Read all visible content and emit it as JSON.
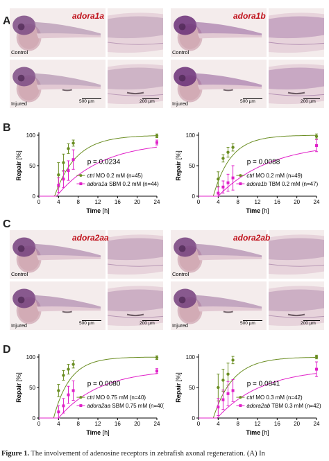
{
  "panel_labels": [
    "A",
    "B",
    "C",
    "D"
  ],
  "photo_panels": [
    {
      "gene": "adora1a",
      "control": "Control",
      "injured": "Injured",
      "scale_whole": "500 µm",
      "scale_zoom": "200 µm",
      "stain": "#a07aa0",
      "stain_strong": "#7c4b85"
    },
    {
      "gene": "adora1b",
      "control": "Control",
      "injured": "Injured",
      "scale_whole": "500 µm",
      "scale_zoom": "200 µm",
      "stain": "#8f5a98",
      "stain_strong": "#6a2f78"
    },
    {
      "gene": "adora2aa",
      "control": "Control",
      "injured": "Injured",
      "scale_whole": "500 µm",
      "scale_zoom": "200 µm",
      "stain": "#9a6e9c",
      "stain_strong": "#74407e"
    },
    {
      "gene": "adora2ab",
      "control": "Control",
      "injured": "Injured",
      "scale_whole": "500 µm",
      "scale_zoom": "200 µm",
      "stain": "#9a6e9c",
      "stain_strong": "#74407e"
    }
  ],
  "chart_data": [
    {
      "type": "line",
      "xlabel": "Time",
      "xunit": "[h]",
      "ylabel": "Repair",
      "yunit": "[%]",
      "xlim": [
        0,
        24
      ],
      "ylim": [
        0,
        100
      ],
      "xticks": [
        0,
        4,
        8,
        12,
        16,
        20,
        24
      ],
      "yticks": [
        0,
        50,
        100
      ],
      "pvalue": "p = 0.0234",
      "series": [
        {
          "name_italic": "ctrl",
          "name_rest": " MO 0.2 mM (n=45)",
          "color": "#6b8e23",
          "x": [
            4,
            5,
            6,
            7,
            24
          ],
          "y": [
            35,
            55,
            78,
            87,
            99
          ],
          "err": [
            20,
            14,
            8,
            5,
            3
          ],
          "fit": {
            "x0": 3.2,
            "k": 0.23,
            "ymax": 100
          }
        },
        {
          "name_italic": "adora1a",
          "name_rest": " SBM 0.2 mM (n=44)",
          "color": "#e020c8",
          "x": [
            4,
            5,
            6,
            7,
            24
          ],
          "y": [
            18,
            28,
            42,
            60,
            88
          ],
          "err": [
            12,
            14,
            16,
            16,
            4
          ],
          "fit": {
            "x0": 3.6,
            "k": 0.11,
            "ymax": 90
          }
        }
      ]
    },
    {
      "type": "line",
      "xlabel": "Time",
      "xunit": "[h]",
      "ylabel": "Repair",
      "yunit": "[%]",
      "xlim": [
        0,
        24
      ],
      "ylim": [
        0,
        100
      ],
      "xticks": [
        0,
        4,
        8,
        12,
        16,
        20,
        24
      ],
      "yticks": [
        0,
        50,
        100
      ],
      "pvalue": "p = 0.0088",
      "series": [
        {
          "name_italic": "ctrl",
          "name_rest": " MO 0.2 mM (n=49)",
          "color": "#6b8e23",
          "x": [
            4,
            5,
            6,
            7,
            24
          ],
          "y": [
            28,
            62,
            72,
            80,
            98
          ],
          "err": [
            12,
            6,
            8,
            6,
            4
          ],
          "fit": {
            "x0": 3.0,
            "k": 0.28,
            "ymax": 100
          }
        },
        {
          "name_italic": "adora1b",
          "name_rest": " TBM 0.2 mM (n=47)",
          "color": "#e020c8",
          "x": [
            4,
            5,
            6,
            7,
            24
          ],
          "y": [
            5,
            15,
            22,
            30,
            83
          ],
          "err": [
            10,
            10,
            14,
            20,
            10
          ],
          "fit": {
            "x0": 4.0,
            "k": 0.095,
            "ymax": 88
          }
        }
      ]
    },
    {
      "type": "line",
      "xlabel": "Time",
      "xunit": "[h]",
      "ylabel": "Repair",
      "yunit": "[%]",
      "xlim": [
        0,
        24
      ],
      "ylim": [
        0,
        100
      ],
      "xticks": [
        0,
        4,
        8,
        12,
        16,
        20,
        24
      ],
      "yticks": [
        0,
        50,
        100
      ],
      "pvalue": "p = 0.0080",
      "series": [
        {
          "name_italic": "ctrl",
          "name_rest": " MO 0.75 mM (n=40)",
          "color": "#6b8e23",
          "x": [
            4,
            5,
            6,
            7,
            24
          ],
          "y": [
            45,
            70,
            80,
            88,
            99
          ],
          "err": [
            10,
            8,
            8,
            6,
            3
          ],
          "fit": {
            "x0": 3.0,
            "k": 0.3,
            "ymax": 100
          }
        },
        {
          "name_italic": "adora2aa",
          "name_rest": " SBM 0.75 mM (n=40)",
          "color": "#e020c8",
          "x": [
            4,
            5,
            6,
            7,
            24
          ],
          "y": [
            10,
            20,
            38,
            45,
            77
          ],
          "err": [
            10,
            12,
            14,
            16,
            4
          ],
          "fit": {
            "x0": 4.0,
            "k": 0.12,
            "ymax": 80
          }
        }
      ]
    },
    {
      "type": "line",
      "xlabel": "Time",
      "xunit": "[h]",
      "ylabel": "Repair",
      "yunit": "[%]",
      "xlim": [
        0,
        24
      ],
      "ylim": [
        0,
        100
      ],
      "xticks": [
        0,
        4,
        8,
        12,
        16,
        20,
        24
      ],
      "yticks": [
        0,
        50,
        100
      ],
      "pvalue": "p = 0.0841",
      "series": [
        {
          "name_italic": "ctrl",
          "name_rest": " MO 0.3 mM (n=42)",
          "color": "#6b8e23",
          "x": [
            4,
            5,
            6,
            7,
            24
          ],
          "y": [
            50,
            62,
            72,
            95,
            100
          ],
          "err": [
            22,
            18,
            18,
            6,
            3
          ],
          "fit": {
            "x0": 3.0,
            "k": 0.25,
            "ymax": 100
          }
        },
        {
          "name_italic": "adora2ab",
          "name_rest": " TBM 0.3 mM (n=42)",
          "color": "#e020c8",
          "x": [
            4,
            5,
            6,
            7,
            24
          ],
          "y": [
            18,
            30,
            40,
            45,
            80
          ],
          "err": [
            14,
            16,
            20,
            18,
            12
          ],
          "fit": {
            "x0": 3.8,
            "k": 0.11,
            "ymax": 82
          }
        }
      ]
    }
  ],
  "caption": {
    "bold": "Figure 1.",
    "text": " The involvement of adenosine receptors in zebrafish axonal regeneration. (A) In"
  }
}
